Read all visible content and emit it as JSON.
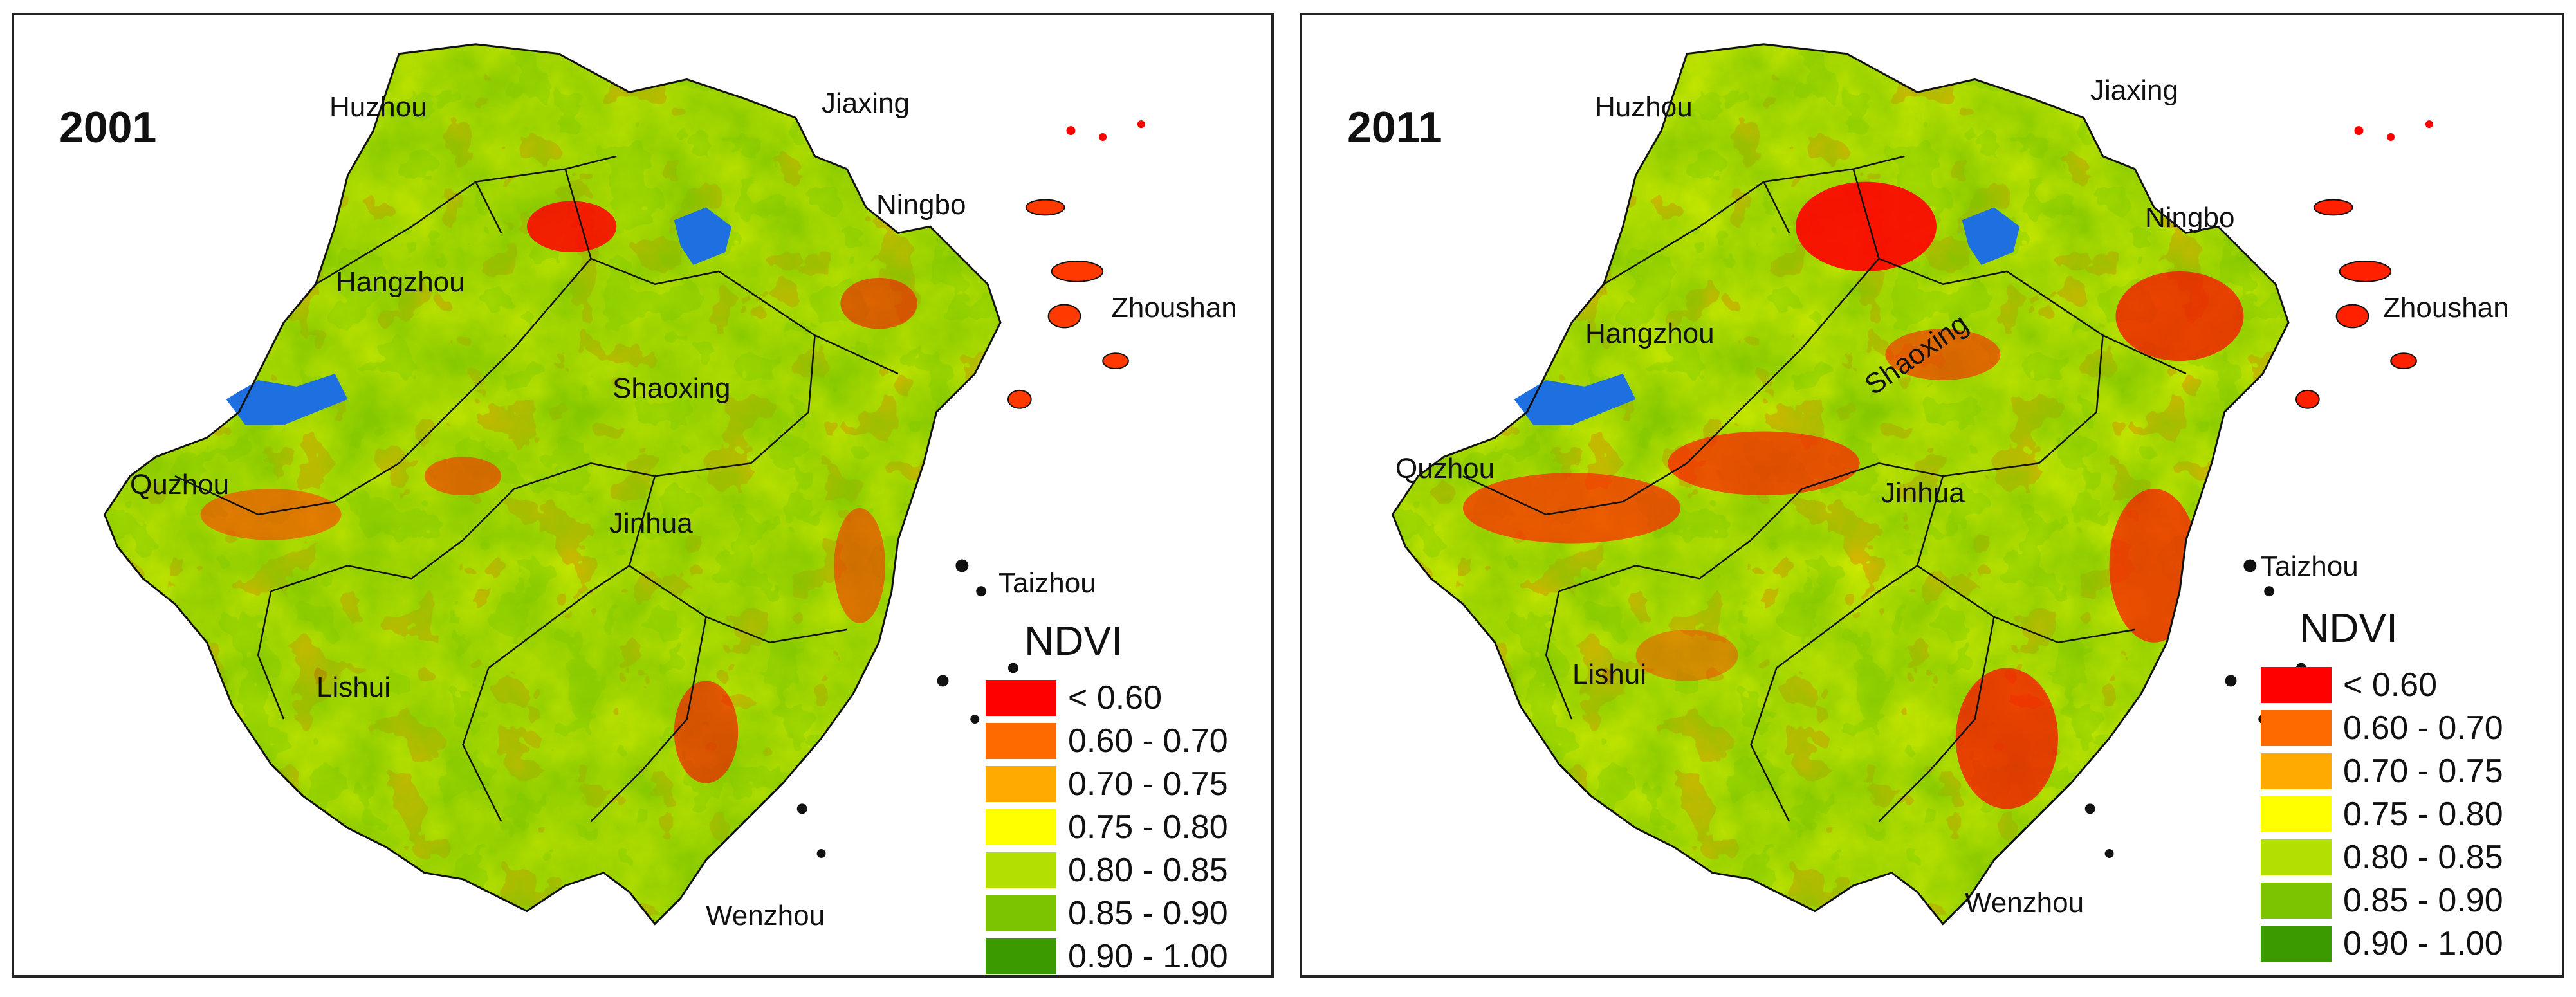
{
  "legend": {
    "title": "NDVI",
    "classes": [
      {
        "label": "< 0.60",
        "color": "#ff0000"
      },
      {
        "label": "0.60 - 0.70",
        "color": "#ff6a00"
      },
      {
        "label": "0.70 - 0.75",
        "color": "#ffaa00"
      },
      {
        "label": "0.75 - 0.80",
        "color": "#ffff00"
      },
      {
        "label": "0.80 - 0.85",
        "color": "#b4e000"
      },
      {
        "label": "0.85 - 0.90",
        "color": "#7cc400"
      },
      {
        "label": "0.90 - 1.00",
        "color": "#3a9a00"
      }
    ]
  },
  "water_color": "#1e6fe0",
  "panels": [
    {
      "year": "2001",
      "cities": {
        "huzhou": "Huzhou",
        "jiaxing": "Jiaxing",
        "ningbo": "Ningbo",
        "hangzhou": "Hangzhou",
        "zhoushan": "Zhoushan",
        "shaoxing": "Shaoxing",
        "quzhou": "Quzhou",
        "jinhua": "Jinhua",
        "taizhou": "Taizhou",
        "lishui": "Lishui",
        "wenzhou": "Wenzhou"
      }
    },
    {
      "year": "2011",
      "cities": {
        "huzhou": "Huzhou",
        "jiaxing": "Jiaxing",
        "ningbo": "Ningbo",
        "hangzhou": "Hangzhou",
        "zhoushan": "Zhoushan",
        "shaoxing": "Shaoxing",
        "quzhou": "Quzhou",
        "jinhua": "Jinhua",
        "taizhou": "Taizhou",
        "lishui": "Lishui",
        "wenzhou": "Wenzhou"
      }
    }
  ]
}
